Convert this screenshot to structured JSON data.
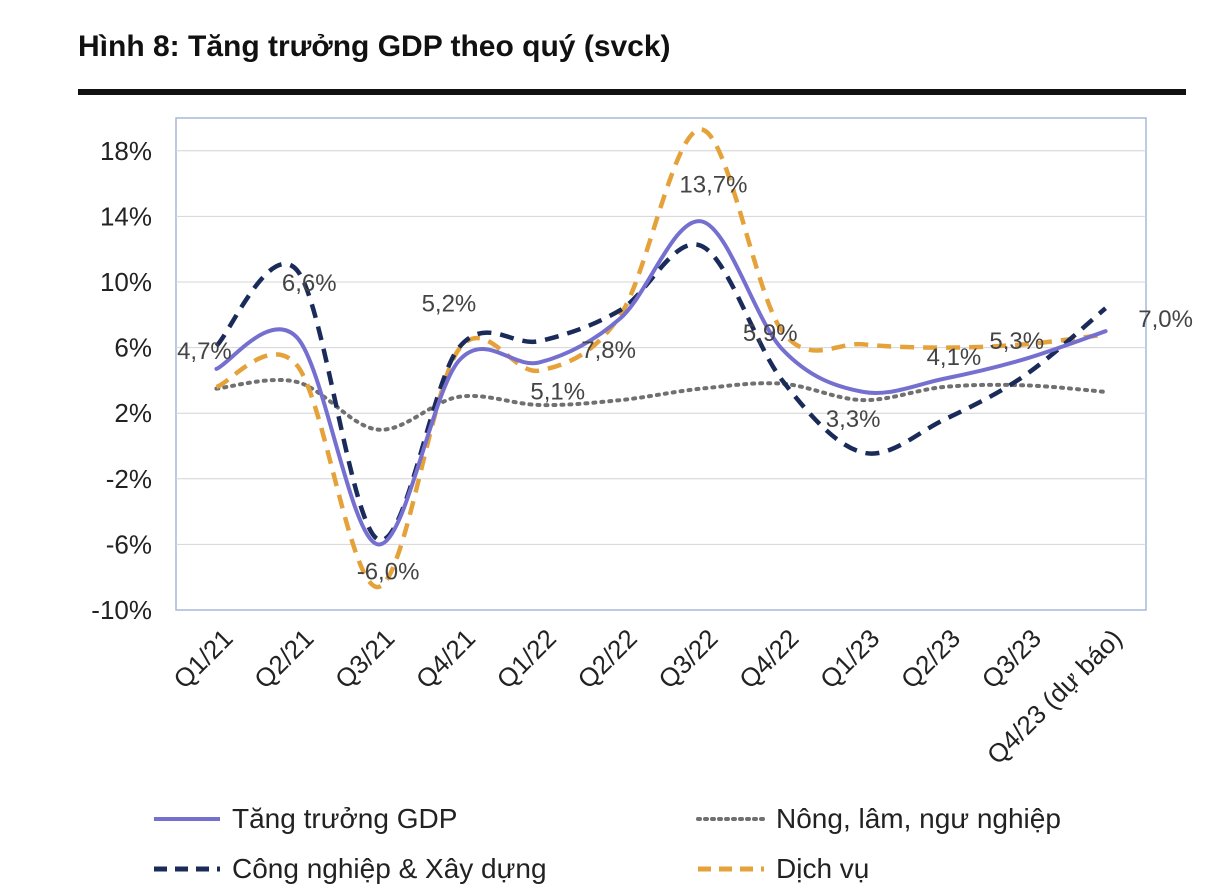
{
  "figure": {
    "title": "Hình 8: Tăng trưởng GDP theo quý (svck)"
  },
  "chart_data": {
    "type": "line",
    "title": "Hình 8: Tăng trưởng GDP theo quý (svck)",
    "xlabel": "",
    "ylabel": "",
    "ylim": [
      -10,
      20
    ],
    "yticks": [
      -10,
      -6,
      -2,
      2,
      6,
      10,
      14,
      18
    ],
    "ytick_labels": [
      "-10%",
      "-6%",
      "-2%",
      "2%",
      "6%",
      "10%",
      "14%",
      "18%"
    ],
    "grid": "horizontal",
    "categories": [
      "Q1/21",
      "Q2/21",
      "Q3/21",
      "Q4/21",
      "Q1/22",
      "Q2/22",
      "Q3/22",
      "Q4/22",
      "Q1/23",
      "Q2/23",
      "Q3/23",
      "Q4/23 (dự báo)"
    ],
    "series": [
      {
        "name": "Tăng trưởng GDP",
        "style": "solid",
        "color": "#7570d0",
        "values": [
          4.7,
          6.6,
          -6.0,
          5.2,
          5.1,
          7.8,
          13.7,
          5.9,
          3.3,
          4.1,
          5.3,
          7.0
        ],
        "labels": [
          "4,7%",
          "6,6%",
          "-6,0%",
          "5,2%",
          "5,1%",
          "7,8%",
          "13,7%",
          "5,9%",
          "3,3%",
          "4,1%",
          "5,3%",
          "7,0%"
        ]
      },
      {
        "name": "Nông, lâm, ngư nghiệp",
        "style": "dotted",
        "color": "#707070",
        "values": [
          3.5,
          3.9,
          1.0,
          3.0,
          2.5,
          2.8,
          3.5,
          3.8,
          2.8,
          3.6,
          3.7,
          3.3
        ]
      },
      {
        "name": "Công nghiệp & Xây dựng",
        "style": "dashed",
        "color": "#1a2b5a",
        "values": [
          6.1,
          10.7,
          -5.7,
          6.0,
          6.4,
          8.3,
          12.2,
          4.0,
          -0.4,
          1.6,
          4.3,
          8.4
        ]
      },
      {
        "name": "Dịch vụ",
        "style": "dashed",
        "color": "#e5a23a",
        "values": [
          3.6,
          4.9,
          -8.6,
          5.9,
          4.6,
          8.0,
          19.3,
          7.0,
          6.2,
          6.0,
          6.2,
          6.8
        ]
      }
    ],
    "legend_position": "bottom"
  }
}
